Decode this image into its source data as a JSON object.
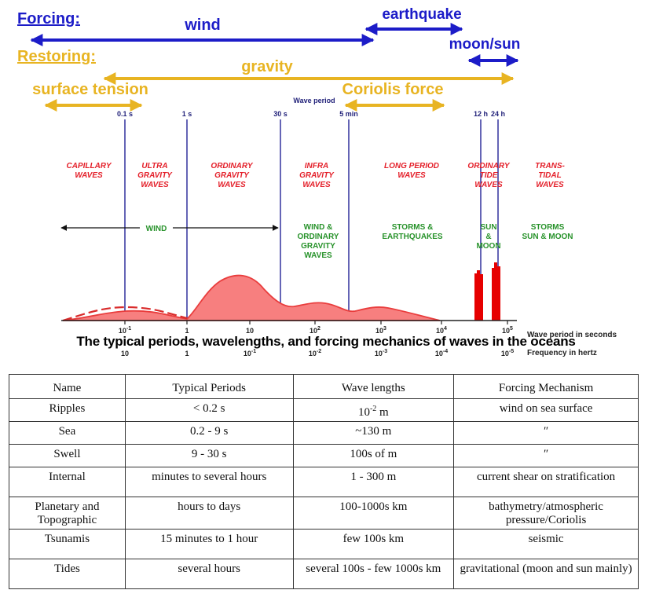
{
  "header": {
    "forcing_label": "Forcing:",
    "restoring_label": "Restoring:",
    "wind": "wind",
    "earthquake": "earthquake",
    "moon_sun": "moon/sun",
    "gravity": "gravity",
    "surface_tension": "surface tension",
    "coriolis_force": "Coriolis force"
  },
  "chart_data": {
    "type": "diagram",
    "period_axis_title": "Wave period",
    "period_marks": [
      "0.1 s",
      "1 s",
      "30 s",
      "5 min",
      "12 h",
      "24 h"
    ],
    "wave_types": [
      [
        "CAPILLARY",
        "WAVES"
      ],
      [
        "ULTRA",
        "GRAVITY",
        "WAVES"
      ],
      [
        "ORDINARY",
        "GRAVITY",
        "WAVES"
      ],
      [
        "INFRA",
        "GRAVITY",
        "WAVES"
      ],
      [
        "LONG PERIOD",
        "WAVES"
      ],
      [
        "ORDINARY",
        "TIDE",
        "WAVES"
      ],
      [
        "TRANS-",
        "TIDAL",
        "WAVES"
      ]
    ],
    "forcings": [
      [
        "WIND"
      ],
      [
        "WIND &",
        "ORDINARY",
        "GRAVITY",
        "WAVES"
      ],
      [
        "STORMS &",
        "EARTHQUAKES"
      ],
      [
        "SUN",
        "&",
        "MOON"
      ],
      [
        "STORMS",
        "SUN & MOON"
      ]
    ],
    "period_ticks": [
      "10^-1",
      "1",
      "10",
      "10^2",
      "10^3",
      "10^4",
      "10^5"
    ],
    "frequency_ticks": [
      "10",
      "1",
      "10^-1",
      "10^-2",
      "10^-3",
      "10^-4",
      "10^-5"
    ],
    "x_label_period": "Wave period in seconds",
    "x_label_frequency": "Frequency in hertz",
    "colors": {
      "forcing": "#1c1cc8",
      "restoring": "#e8b422",
      "wave_type": "#e4202a",
      "forcing_text": "#27922a",
      "energy": "#f77f7f",
      "tide": "#e60000"
    }
  },
  "caption": "The typical periods, wavelengths, and forcing mechanics of waves in the oceans",
  "table": {
    "headers": [
      "Name",
      "Typical Periods",
      "Wave lengths",
      "Forcing Mechanism"
    ],
    "rows": [
      [
        "Ripples",
        "< 0.2 s",
        "10-2 m",
        "wind on sea surface"
      ],
      [
        "Sea",
        "0.2 - 9 s",
        "~130 m",
        "″"
      ],
      [
        "Swell",
        "9 - 30 s",
        "100s of m",
        "″"
      ],
      [
        "Internal",
        "minutes to several hours",
        "1 - 300 m",
        "current shear on stratification"
      ],
      [
        "Planetary and Topographic",
        "hours to days",
        "100-1000s km",
        "bathymetry/atmospheric pressure/Coriolis"
      ],
      [
        "Tsunamis",
        "15 minutes to 1 hour",
        "few 100s km",
        "seismic"
      ],
      [
        "Tides",
        "several hours",
        "several 100s - few 1000s km",
        "gravitational (moon and sun mainly)"
      ]
    ]
  }
}
